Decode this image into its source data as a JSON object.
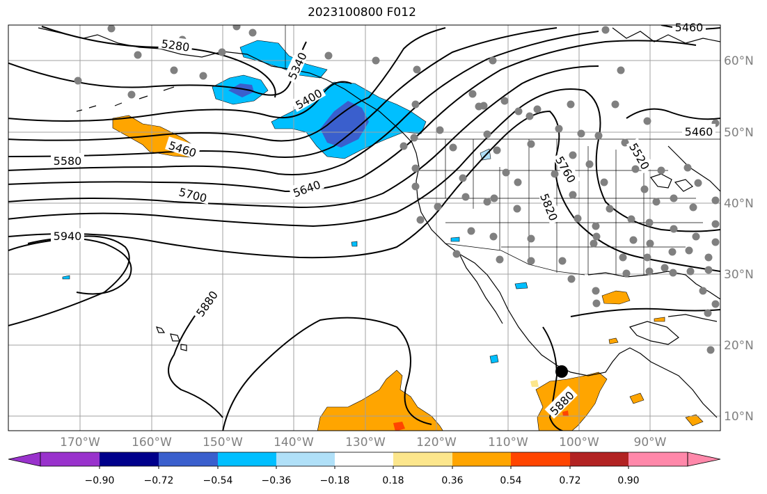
{
  "title": "2023100800 F012",
  "lon_labels": [
    "170°W",
    "160°W",
    "150°W",
    "140°W",
    "130°W",
    "120°W",
    "110°W",
    "100°W",
    "90°W"
  ],
  "lat_labels": [
    "60°N",
    "50°N",
    "40°N",
    "30°N",
    "20°N",
    "10°N"
  ],
  "contour_labels": [
    "5280",
    "5340",
    "5400",
    "5460",
    "5460",
    "5460",
    "5520",
    "5580",
    "5640",
    "5700",
    "5760",
    "5820",
    "5880",
    "5880",
    "5940"
  ],
  "colorbar": {
    "ticks": [
      "−0.90",
      "−0.72",
      "−0.54",
      "−0.36",
      "−0.18",
      "0.18",
      "0.36",
      "0.54",
      "0.72",
      "0.90"
    ],
    "colors": [
      "#9932cc",
      "#00008b",
      "#3a5fcd",
      "#00bfff",
      "#b0e0f8",
      "#ffffff",
      "#fce68c",
      "#ffa500",
      "#ff4500",
      "#b22222",
      "#ff88aa"
    ]
  },
  "colors": {
    "gridline": "#a0a0a0",
    "station": "#808080",
    "contour": "#000000"
  }
}
